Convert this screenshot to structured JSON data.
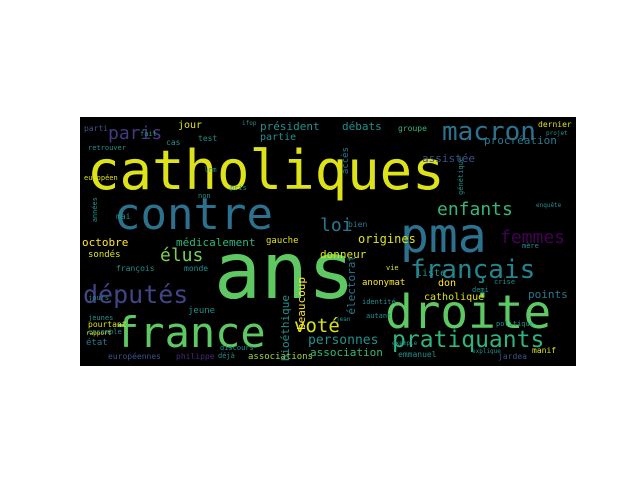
{
  "background": "#000000",
  "palette": [
    "#dde318",
    "#7ad151",
    "#22a884",
    "#2a788e",
    "#414487",
    "#440154"
  ],
  "words": [
    {
      "text": "catholiques",
      "color": "#dde318"
    },
    {
      "text": "ans",
      "color": "#5ec962"
    },
    {
      "text": "contre",
      "color": "#2c728e"
    },
    {
      "text": "pma",
      "color": "#2c728e"
    },
    {
      "text": "droite",
      "color": "#5ec962"
    },
    {
      "text": "france",
      "color": "#5ec962"
    },
    {
      "text": "macron",
      "color": "#2c728e"
    },
    {
      "text": "français",
      "color": "#25858e"
    },
    {
      "text": "pratiquants",
      "color": "#2fb47c"
    },
    {
      "text": "députés",
      "color": "#414487"
    },
    {
      "text": "voté",
      "color": "#d8e219"
    },
    {
      "text": "enfants",
      "color": "#35b779"
    },
    {
      "text": "paris",
      "color": "#443983"
    },
    {
      "text": "femmes",
      "color": "#440154"
    },
    {
      "text": "élus",
      "color": "#7ad151"
    },
    {
      "text": "loi",
      "color": "#2a788e"
    },
    {
      "text": "personnes",
      "color": "#21918c"
    },
    {
      "text": "procréation",
      "color": "#2a788e"
    },
    {
      "text": "origines",
      "color": "#dde318"
    },
    {
      "text": "octobre",
      "color": "#fde725"
    },
    {
      "text": "médicalement",
      "color": "#2fb47c"
    },
    {
      "text": "président",
      "color": "#21918c"
    },
    {
      "text": "débats",
      "color": "#21918c"
    },
    {
      "text": "assistée",
      "color": "#3b528b"
    },
    {
      "text": "association",
      "color": "#35b779"
    },
    {
      "text": "associations",
      "color": "#a0da39"
    },
    {
      "text": "catholique",
      "color": "#dde318"
    },
    {
      "text": "points",
      "color": "#2a788e"
    },
    {
      "text": "liste",
      "color": "#21918c"
    },
    {
      "text": "donneur",
      "color": "#dde318"
    },
    {
      "text": "don",
      "color": "#fde725"
    },
    {
      "text": "anonymat",
      "color": "#fde725"
    },
    {
      "text": "électorat",
      "color": "#2a788e"
    },
    {
      "text": "beaucoup",
      "color": "#fde725"
    },
    {
      "text": "bioéthique",
      "color": "#21918c"
    },
    {
      "text": "partie",
      "color": "#21918c"
    },
    {
      "text": "jour",
      "color": "#dde318"
    },
    {
      "text": "gauche",
      "color": "#dde318"
    },
    {
      "text": "jeune",
      "color": "#21918c"
    },
    {
      "text": "sondés",
      "color": "#dde318"
    },
    {
      "text": "françois",
      "color": "#21918c"
    },
    {
      "text": "monde",
      "color": "#21918c"
    },
    {
      "text": "état",
      "color": "#2a788e"
    },
    {
      "text": "pourtant",
      "color": "#dde318"
    },
    {
      "text": "emmanuel",
      "color": "#21918c"
    },
    {
      "text": "européennes",
      "color": "#3b528b"
    },
    {
      "text": "philippe",
      "color": "#482878"
    },
    {
      "text": "groupe",
      "color": "#35b779"
    },
    {
      "text": "dernier",
      "color": "#dde318"
    },
    {
      "text": "parti",
      "color": "#3b528b"
    },
    {
      "text": "fait",
      "color": "#21918c"
    },
    {
      "text": "ifop",
      "color": "#21918c"
    },
    {
      "text": "lrm",
      "color": "#21918c"
    },
    {
      "text": "cas",
      "color": "#21918c"
    },
    {
      "text": "accès",
      "color": "#2a788e"
    },
    {
      "text": "bien",
      "color": "#2a788e"
    },
    {
      "text": "mai",
      "color": "#21918c"
    },
    {
      "text": "vie",
      "color": "#dde318"
    },
    {
      "text": "crise",
      "color": "#21918c"
    },
    {
      "text": "mère",
      "color": "#21918c"
    },
    {
      "text": "demi",
      "color": "#21918c"
    },
    {
      "text": "manif",
      "color": "#dde318"
    },
    {
      "text": "jeunes",
      "color": "#21918c"
    },
    {
      "text": "jours",
      "color": "#21918c"
    },
    {
      "text": "ensemble",
      "color": "#21918c"
    },
    {
      "text": "discours",
      "color": "#21918c"
    },
    {
      "text": "rapport",
      "color": "#dde318"
    },
    {
      "text": "déjà",
      "color": "#21918c"
    },
    {
      "text": "jardea",
      "color": "#3b528b"
    },
    {
      "text": "européen",
      "color": "#dde318"
    },
    {
      "text": "retrouver",
      "color": "#21918c"
    },
    {
      "text": "non",
      "color": "#21918c"
    },
    {
      "text": "pris",
      "color": "#21918c"
    },
    {
      "text": "autant",
      "color": "#21918c"
    },
    {
      "text": "identité",
      "color": "#21918c"
    },
    {
      "text": "jean",
      "color": "#21918c"
    },
    {
      "text": "politique",
      "color": "#21918c"
    },
    {
      "text": "explique",
      "color": "#21918c"
    },
    {
      "text": "enquête",
      "color": "#21918c"
    },
    {
      "text": "projet",
      "color": "#21918c"
    },
    {
      "text": "génétique",
      "color": "#21918c"
    },
    {
      "text": "années",
      "color": "#21918c"
    },
    {
      "text": "exemple",
      "color": "#21918c"
    },
    {
      "text": "test",
      "color": "#21918c"
    }
  ]
}
